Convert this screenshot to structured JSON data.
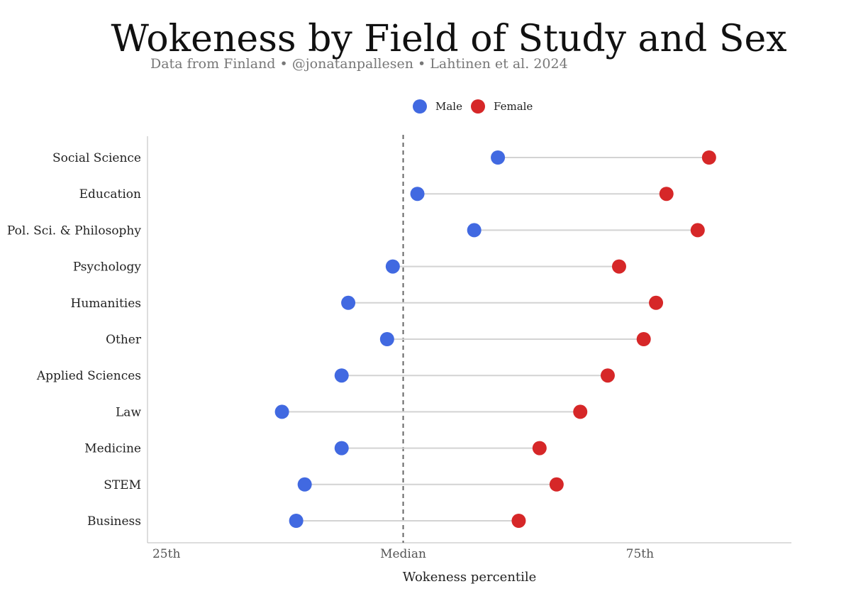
{
  "chart_data": {
    "type": "dumbbell",
    "title": "Wokeness by Field of Study and Sex",
    "subtitle": "Data from Finland • @jonatanpallesen • Lahtinen et al. 2024",
    "xlabel": "Wokeness percentile",
    "ylabel": "",
    "xlim": [
      23,
      91
    ],
    "xticks": [
      {
        "value": 25,
        "label": "25th"
      },
      {
        "value": 50,
        "label": "Median"
      },
      {
        "value": 75,
        "label": "75th"
      }
    ],
    "reference_line": {
      "value": 50,
      "style": "dashed"
    },
    "legend_position": "top",
    "categories": [
      "Social Science",
      "Education",
      "Pol. Sci. & Philosophy",
      "Psychology",
      "Humanities",
      "Other",
      "Applied Sciences",
      "Law",
      "Medicine",
      "STEM",
      "Business"
    ],
    "series": [
      {
        "name": "Male",
        "color": "#4169E1",
        "values": [
          60.0,
          51.5,
          57.5,
          48.9,
          44.2,
          48.3,
          43.5,
          37.2,
          43.5,
          39.6,
          38.7
        ]
      },
      {
        "name": "Female",
        "color": "#D62728",
        "values": [
          82.3,
          77.8,
          81.1,
          72.8,
          76.7,
          75.4,
          71.6,
          68.7,
          64.4,
          66.2,
          62.2
        ]
      }
    ],
    "grid": false
  }
}
